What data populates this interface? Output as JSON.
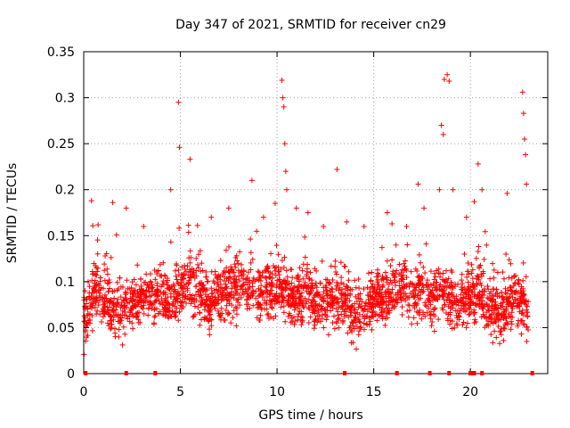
{
  "chart_data": {
    "type": "scatter",
    "title": "Day 347 of 2021, SRMTID for receiver cn29",
    "xlabel": "GPS time / hours",
    "ylabel": "SRMTID / TECUs",
    "xlim": [
      0,
      24
    ],
    "ylim": [
      0,
      0.35
    ],
    "xticks": [
      0,
      5,
      10,
      15,
      20
    ],
    "xtick_labels": [
      "0",
      "5",
      "10",
      "15",
      "20"
    ],
    "yticks": [
      0,
      0.05,
      0.1,
      0.15,
      0.2,
      0.25,
      0.3,
      0.35
    ],
    "ytick_labels": [
      "0",
      "0.05",
      "0.1",
      "0.15",
      "0.2",
      "0.25",
      "0.3",
      "0.35"
    ],
    "grid": true,
    "marker": "+",
    "color": "#ff0000",
    "series": [
      {
        "name": "SRMTID",
        "baseline_profile": [
          [
            0.0,
            0.06
          ],
          [
            0.5,
            0.09
          ],
          [
            1.0,
            0.08
          ],
          [
            1.5,
            0.07
          ],
          [
            2.0,
            0.07
          ],
          [
            2.5,
            0.075
          ],
          [
            3.0,
            0.08
          ],
          [
            3.5,
            0.09
          ],
          [
            4.0,
            0.085
          ],
          [
            4.5,
            0.08
          ],
          [
            5.0,
            0.09
          ],
          [
            5.5,
            0.1
          ],
          [
            6.0,
            0.085
          ],
          [
            6.5,
            0.08
          ],
          [
            7.0,
            0.085
          ],
          [
            7.5,
            0.09
          ],
          [
            8.0,
            0.095
          ],
          [
            8.5,
            0.1
          ],
          [
            9.0,
            0.09
          ],
          [
            9.5,
            0.09
          ],
          [
            10.0,
            0.095
          ],
          [
            10.5,
            0.09
          ],
          [
            11.0,
            0.08
          ],
          [
            11.5,
            0.09
          ],
          [
            12.0,
            0.08
          ],
          [
            12.5,
            0.075
          ],
          [
            13.0,
            0.075
          ],
          [
            13.5,
            0.08
          ],
          [
            14.0,
            0.065
          ],
          [
            14.5,
            0.07
          ],
          [
            15.0,
            0.08
          ],
          [
            15.5,
            0.085
          ],
          [
            16.0,
            0.09
          ],
          [
            16.5,
            0.095
          ],
          [
            17.0,
            0.08
          ],
          [
            17.5,
            0.09
          ],
          [
            18.0,
            0.08
          ],
          [
            18.5,
            0.09
          ],
          [
            19.0,
            0.075
          ],
          [
            19.5,
            0.08
          ],
          [
            20.0,
            0.085
          ],
          [
            20.5,
            0.09
          ],
          [
            21.0,
            0.075
          ],
          [
            21.5,
            0.065
          ],
          [
            22.0,
            0.075
          ],
          [
            22.5,
            0.08
          ],
          [
            23.0,
            0.07
          ]
        ],
        "peaks": [
          [
            0.4,
            0.188
          ],
          [
            1.5,
            0.186
          ],
          [
            2.2,
            0.18
          ],
          [
            3.1,
            0.16
          ],
          [
            4.5,
            0.2
          ],
          [
            4.9,
            0.295
          ],
          [
            4.95,
            0.246
          ],
          [
            5.5,
            0.233
          ],
          [
            6.6,
            0.17
          ],
          [
            7.5,
            0.18
          ],
          [
            8.7,
            0.21
          ],
          [
            9.3,
            0.17
          ],
          [
            9.9,
            0.185
          ],
          [
            10.25,
            0.319
          ],
          [
            10.3,
            0.3
          ],
          [
            10.35,
            0.29
          ],
          [
            10.4,
            0.25
          ],
          [
            10.45,
            0.22
          ],
          [
            10.5,
            0.2
          ],
          [
            11.0,
            0.18
          ],
          [
            11.6,
            0.175
          ],
          [
            12.4,
            0.16
          ],
          [
            13.1,
            0.222
          ],
          [
            13.6,
            0.165
          ],
          [
            14.5,
            0.16
          ],
          [
            15.7,
            0.175
          ],
          [
            16.7,
            0.16
          ],
          [
            17.3,
            0.206
          ],
          [
            17.6,
            0.18
          ],
          [
            18.4,
            0.2
          ],
          [
            18.5,
            0.27
          ],
          [
            18.6,
            0.26
          ],
          [
            18.65,
            0.32
          ],
          [
            18.8,
            0.325
          ],
          [
            18.9,
            0.318
          ],
          [
            19.1,
            0.2
          ],
          [
            19.8,
            0.17
          ],
          [
            20.4,
            0.228
          ],
          [
            20.6,
            0.2
          ],
          [
            21.9,
            0.196
          ],
          [
            22.7,
            0.306
          ],
          [
            22.75,
            0.283
          ],
          [
            22.8,
            0.255
          ],
          [
            22.85,
            0.238
          ],
          [
            22.9,
            0.206
          ],
          [
            20.2,
            0.187
          ]
        ],
        "zero_markers_x": [
          0.1,
          2.2,
          3.7,
          13.5,
          16.2,
          17.9,
          18.9,
          20.0,
          20.1,
          20.2,
          20.6,
          23.2
        ]
      }
    ]
  }
}
